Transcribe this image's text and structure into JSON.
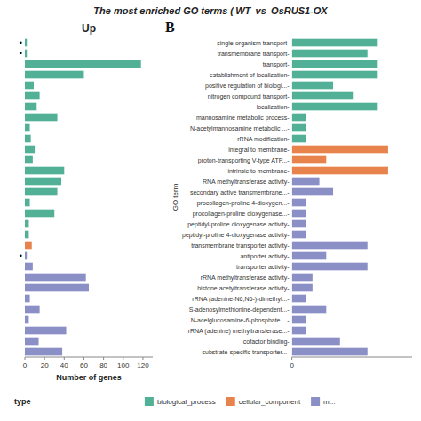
{
  "chart_data": [
    {
      "type": "bar",
      "orientation": "horizontal",
      "title": "The most enriched GO terms ( WT  vs  OsRUS1-OX",
      "subtitle": "Up",
      "xlabel": "Number of genes",
      "categories": [
        null,
        null,
        null,
        null,
        null,
        null,
        null,
        null,
        null,
        null,
        null,
        null,
        null,
        null,
        null,
        null,
        null,
        null,
        null,
        null,
        null,
        null,
        null,
        null,
        null,
        null,
        null,
        null,
        null,
        null
      ],
      "values": [
        2,
        2,
        118,
        60,
        9,
        15,
        12,
        33,
        5,
        6,
        10,
        8,
        40,
        37,
        33,
        5,
        30,
        4,
        4,
        7,
        2,
        8,
        62,
        65,
        5,
        15,
        4,
        42,
        14,
        38
      ],
      "colors": [
        "#52b096",
        "#52b096",
        "#52b096",
        "#52b096",
        "#52b096",
        "#52b096",
        "#52b096",
        "#52b096",
        "#52b096",
        "#52b096",
        "#52b096",
        "#52b096",
        "#52b096",
        "#52b096",
        "#52b096",
        "#52b096",
        "#52b096",
        "#52b096",
        "#52b096",
        "#e8834d",
        "#8a8fc5",
        "#8a8fc5",
        "#8a8fc5",
        "#8a8fc5",
        "#8a8fc5",
        "#8a8fc5",
        "#8a8fc5",
        "#8a8fc5",
        "#8a8fc5",
        "#8a8fc5"
      ],
      "annotations": [
        {
          "text": "•",
          "index": 0
        },
        {
          "text": "•",
          "index": 1
        },
        {
          "text": "•",
          "index": 20
        }
      ],
      "xlim": [
        0,
        130
      ],
      "xticks": [
        0,
        20,
        40,
        60,
        80,
        100,
        120
      ],
      "tick_labels": "x",
      "grid": false
    },
    {
      "type": "bar",
      "orientation": "horizontal",
      "ylabel": "GO term",
      "categories": [
        "single-organism transport-",
        "transmembrane transport-",
        "transport-",
        "establishment of  localization-",
        "positive regulation of biologi...-",
        "nitrogen compound transport-",
        "localization-",
        "mannosamine metabolic process-",
        "N-acetylmannosamine metabolic ...-",
        "rRNA modification-",
        "integral to membrane-",
        "proton-transporting V-type ATP...-",
        "intrinsic to membrane-",
        "RNA methyltransferase activity-",
        "secondary active transmembrane...-",
        "procollagen-proline 4-dioxygen...-",
        "procollagen-proline dioxygenase...-",
        "peptidyl-proline dioxygenase activity-",
        "peptidyl-proline 4-dioxygenase activity-",
        "transmembrane transporter activity-",
        "antiporter activity-",
        "transporter activity-",
        "rRNA methyltransferase activity-",
        "histone acetyltransferase activity-",
        "rRNA (adenine-N6,N6-)-dimethyl...-",
        "S-adenosylmethionine-dependent...-",
        "N-acelglucosamine-6-phosphate ...-",
        "rRNA (adenine) methyltransferase...-",
        "cofactor binding-",
        "substrate-specific transporter...-"
      ],
      "values": [
        25,
        22,
        25,
        25,
        12,
        18,
        25,
        4,
        4,
        4,
        28,
        10,
        28,
        8,
        12,
        4,
        4,
        4,
        4,
        22,
        10,
        22,
        6,
        6,
        4,
        10,
        4,
        4,
        14,
        22
      ],
      "colors": [
        "#52b096",
        "#52b096",
        "#52b096",
        "#52b096",
        "#52b096",
        "#52b096",
        "#52b096",
        "#52b096",
        "#52b096",
        "#52b096",
        "#e8834d",
        "#e8834d",
        "#e8834d",
        "#8a8fc5",
        "#8a8fc5",
        "#8a8fc5",
        "#8a8fc5",
        "#8a8fc5",
        "#8a8fc5",
        "#8a8fc5",
        "#8a8fc5",
        "#8a8fc5",
        "#8a8fc5",
        "#8a8fc5",
        "#8a8fc5",
        "#8a8fc5",
        "#8a8fc5",
        "#8a8fc5",
        "#8a8fc5",
        "#8a8fc5"
      ],
      "annotations": [
        {
          "text": "B"
        }
      ],
      "xlim": [
        0,
        35
      ],
      "xticks": [
        0
      ],
      "grid": false,
      "legend": "bottom",
      "legend_title": "type",
      "legend_items": [
        {
          "name": "biological_process",
          "color": "#52b096"
        },
        {
          "name": "cellular_component",
          "color": "#e8834d"
        },
        {
          "name": "m...",
          "color": "#8a8fc5"
        }
      ]
    }
  ]
}
